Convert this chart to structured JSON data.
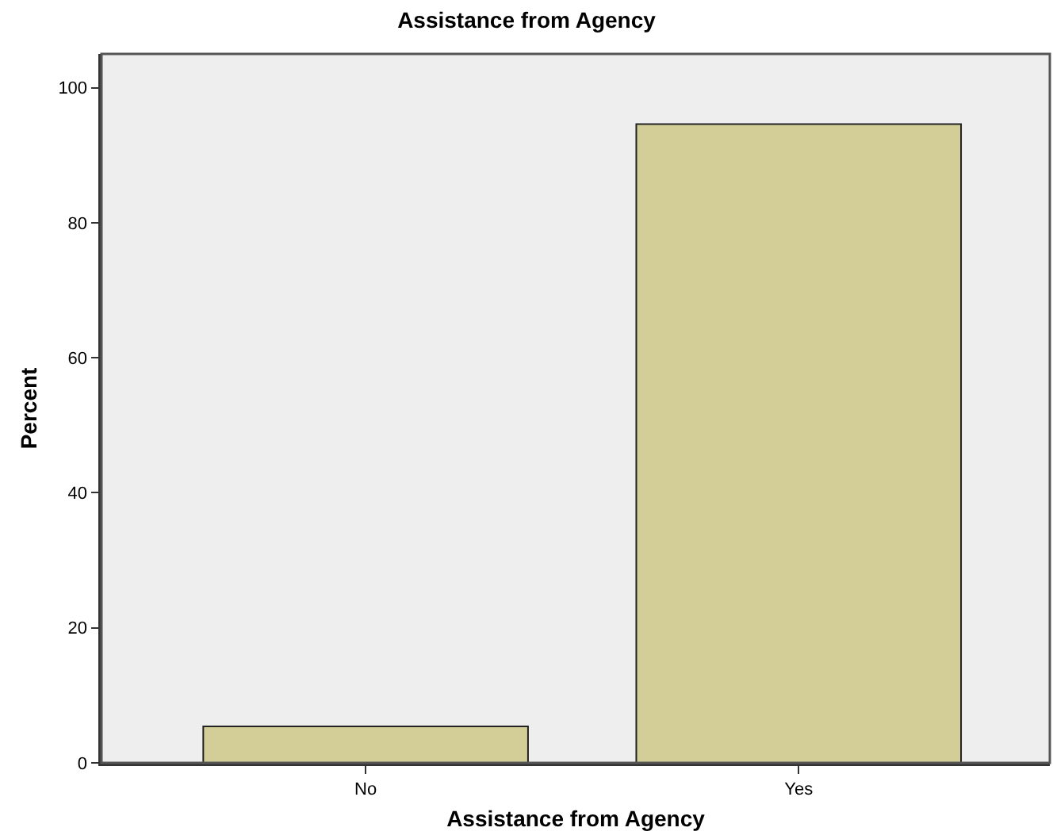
{
  "chart_data": {
    "type": "bar",
    "title": "Assistance from Agency",
    "xlabel": "Assistance from Agency",
    "ylabel": "Percent",
    "categories": [
      "No",
      "Yes"
    ],
    "values": [
      5.4,
      94.6
    ],
    "color": "#d3ce97",
    "ylim": [
      0,
      105
    ],
    "yticks": [
      0,
      20,
      40,
      60,
      80,
      100
    ]
  }
}
